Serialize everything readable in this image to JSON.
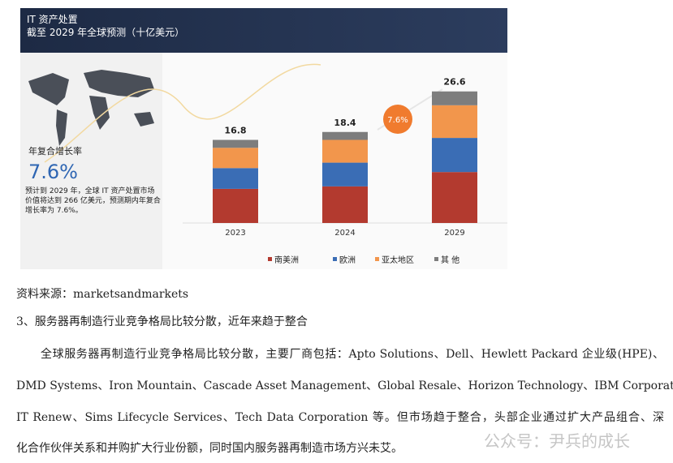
{
  "chart_data": {
    "type": "stacked_bar",
    "header_title": "IT 资产处置",
    "header_subtitle": "截至 2029 年全球预测（十亿美元）",
    "cagr_label": "年复合增长率",
    "cagr_value": "7.6%",
    "description": "预计到 2029 年，全球 IT 资产处置市场价值将达到 266 亿美元，预测期内年复合增长率为 7.6%。",
    "bubble_label": "7.6%",
    "categories": [
      "2023",
      "2024",
      "2029"
    ],
    "totals": [
      16.8,
      18.4,
      26.6
    ],
    "series": [
      {
        "name": "南美洲",
        "color": "#b33a2f",
        "values": [
          6.9,
          7.4,
          10.3
        ]
      },
      {
        "name": "欧洲",
        "color": "#3a6db5",
        "values": [
          4.2,
          4.8,
          6.9
        ]
      },
      {
        "name": "亚太地区",
        "color": "#f2964c",
        "values": [
          4.1,
          4.6,
          6.6
        ]
      },
      {
        "name": "其 他",
        "color": "#7d7d7d",
        "values": [
          1.6,
          1.6,
          2.8
        ]
      }
    ]
  },
  "source": "资料来源：marketsandmarkets",
  "heading": "3、服务器再制造行业竞争格局比较分散，近年来趋于整合",
  "paragraph_lines": [
    "全球服务器再制造行业竞争格局比较分散，主要厂商包括：Apto Solutions、Dell、Hewlett Packard 企业级(HPE)、",
    "DMD Systems、Iron Mountain、Cascade Asset Management、Global Resale、Horizon Technology、IBM Corporation、",
    "IT Renew、Sims Lifecycle Services、Tech Data Corporation 等。但市场趋于整合，头部企业通过扩大产品组合、深",
    "化合作伙伴关系和并购扩大行业份额，同时国内服务器再制造市场方兴未艾。"
  ],
  "watermark": "公众号：尹兵的成长"
}
